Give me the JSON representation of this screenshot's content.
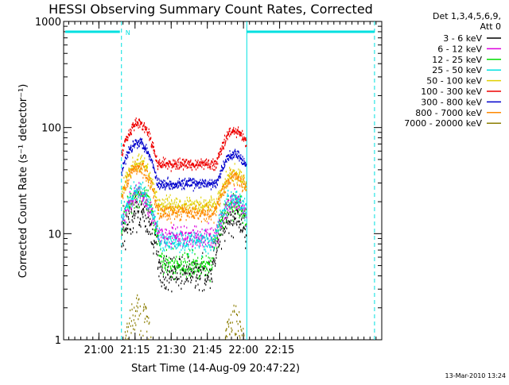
{
  "chart_data": {
    "type": "line",
    "title": "HESSI Observing Summary Count Rates, Corrected",
    "xlabel": "Start Time (14-Aug-09 20:47:22)",
    "ylabel": "Corrected Count Rate (s⁻¹ detector⁻¹)",
    "y_scale": "log",
    "ylim": [
      1,
      1000
    ],
    "xlim_minutes": [
      -2,
      130
    ],
    "y_ticks": [
      {
        "v": 1,
        "label": "1"
      },
      {
        "v": 10,
        "label": "10"
      },
      {
        "v": 100,
        "label": "100"
      },
      {
        "v": 1000,
        "label": "1000"
      }
    ],
    "x_ticks": [
      {
        "min": 12.63,
        "label": "21:00"
      },
      {
        "min": 27.63,
        "label": "21:15"
      },
      {
        "min": 42.63,
        "label": "21:30"
      },
      {
        "min": 57.63,
        "label": "21:45"
      },
      {
        "min": 72.63,
        "label": "22:00"
      },
      {
        "min": 87.63,
        "label": "22:15"
      }
    ],
    "legend_header": [
      "Det 1,3,4,5,6,9,",
      "Att 0"
    ],
    "series": [
      {
        "name": "3 - 6 keV",
        "color": "#000000",
        "min": 4.3,
        "peak1": 16,
        "peak2": 14,
        "noise": 0.07
      },
      {
        "name": "6 - 12 keV",
        "color": "#dd00dd",
        "min": 9.5,
        "peak1": 24,
        "peak2": 20,
        "noise": 0.05
      },
      {
        "name": "12 - 25 keV",
        "color": "#00dd00",
        "min": 5.2,
        "peak1": 24,
        "peak2": 19,
        "noise": 0.06
      },
      {
        "name": "25 - 50 keV",
        "color": "#00e0e0",
        "min": 8.6,
        "peak1": 26,
        "peak2": 22,
        "noise": 0.05
      },
      {
        "name": "50 - 100 keV",
        "color": "#e0d000",
        "min": 19,
        "peak1": 47,
        "peak2": 37,
        "noise": 0.04
      },
      {
        "name": "100 - 300 keV",
        "color": "#ee0000",
        "min": 46,
        "peak1": 112,
        "peak2": 95,
        "noise": 0.025
      },
      {
        "name": "300 - 800 keV",
        "color": "#0000cc",
        "min": 30,
        "peak1": 75,
        "peak2": 58,
        "noise": 0.025
      },
      {
        "name": "800 - 7000 keV",
        "color": "#ff8800",
        "min": 16,
        "peak1": 43,
        "peak2": 35,
        "noise": 0.035
      },
      {
        "name": "7000 - 20000 keV",
        "color": "#8b7d00",
        "min": 1,
        "peak1": 2.8,
        "peak2": 2.2,
        "noise": 0.12
      }
    ],
    "night_intervals_minutes": [
      [
        -2,
        22
      ],
      [
        74,
        130
      ]
    ],
    "saa_markers_minutes": [
      22,
      74,
      127
    ],
    "flag_label": "N",
    "flag_level": 800,
    "legend_position": "right",
    "timestamp": "13-Mar-2010 13:24"
  }
}
